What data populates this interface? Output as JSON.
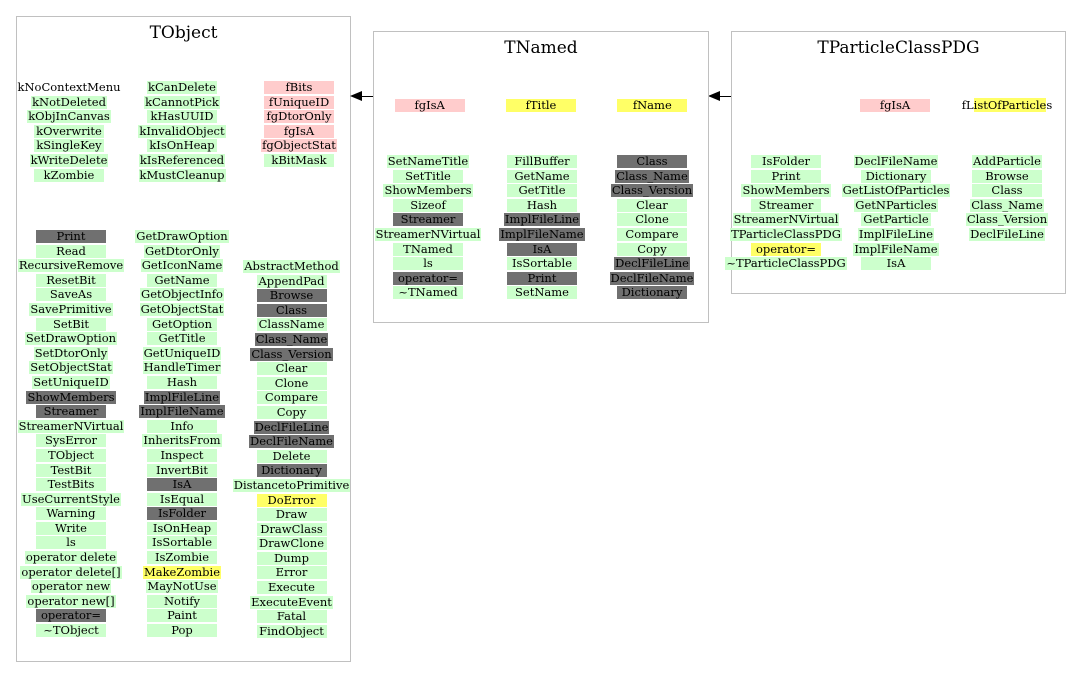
{
  "tobject": {
    "title": "TObject",
    "enums_a": [
      {
        "t": "kNoContextMenu",
        "c": "n"
      },
      {
        "t": "kNotDeleted",
        "c": "g"
      },
      {
        "t": "kObjInCanvas",
        "c": "g"
      },
      {
        "t": "kOverwrite",
        "c": "g"
      },
      {
        "t": "kSingleKey",
        "c": "g"
      },
      {
        "t": "kWriteDelete",
        "c": "g"
      },
      {
        "t": "kZombie",
        "c": "g"
      }
    ],
    "enums_b": [
      {
        "t": "kCanDelete",
        "c": "g"
      },
      {
        "t": "kCannotPick",
        "c": "g"
      },
      {
        "t": "kHasUUID",
        "c": "g"
      },
      {
        "t": "kInvalidObject",
        "c": "g"
      },
      {
        "t": "kIsOnHeap",
        "c": "g"
      },
      {
        "t": "kIsReferenced",
        "c": "g"
      },
      {
        "t": "kMustCleanup",
        "c": "g"
      }
    ],
    "members": [
      {
        "t": "fBits",
        "c": "p"
      },
      {
        "t": "fUniqueID",
        "c": "p"
      },
      {
        "t": "fgDtorOnly",
        "c": "p"
      },
      {
        "t": "fgIsA",
        "c": "p"
      },
      {
        "t": "fgObjectStat",
        "c": "p"
      },
      {
        "t": "kBitMask",
        "c": "g"
      }
    ],
    "methods_1": [
      {
        "t": "Print",
        "c": "d"
      },
      {
        "t": "Read",
        "c": "g"
      },
      {
        "t": "RecursiveRemove",
        "c": "g"
      },
      {
        "t": "ResetBit",
        "c": "g"
      },
      {
        "t": "SaveAs",
        "c": "g"
      },
      {
        "t": "SavePrimitive",
        "c": "g"
      },
      {
        "t": "SetBit",
        "c": "g"
      },
      {
        "t": "SetDrawOption",
        "c": "g"
      },
      {
        "t": "SetDtorOnly",
        "c": "g"
      },
      {
        "t": "SetObjectStat",
        "c": "g"
      },
      {
        "t": "SetUniqueID",
        "c": "g"
      },
      {
        "t": "ShowMembers",
        "c": "d"
      },
      {
        "t": "Streamer",
        "c": "d"
      },
      {
        "t": "StreamerNVirtual",
        "c": "g"
      },
      {
        "t": "SysError",
        "c": "g"
      },
      {
        "t": "TObject",
        "c": "g"
      },
      {
        "t": "TestBit",
        "c": "g"
      },
      {
        "t": "TestBits",
        "c": "g"
      },
      {
        "t": "UseCurrentStyle",
        "c": "g"
      },
      {
        "t": "Warning",
        "c": "g"
      },
      {
        "t": "Write",
        "c": "g"
      },
      {
        "t": "ls",
        "c": "g"
      },
      {
        "t": "operator delete",
        "c": "g"
      },
      {
        "t": "operator delete[]",
        "c": "g"
      },
      {
        "t": "operator new",
        "c": "g"
      },
      {
        "t": "operator new[]",
        "c": "g"
      },
      {
        "t": "operator=",
        "c": "d"
      },
      {
        "t": "~TObject",
        "c": "g"
      }
    ],
    "methods_2": [
      {
        "t": "GetDrawOption",
        "c": "g"
      },
      {
        "t": "GetDtorOnly",
        "c": "g"
      },
      {
        "t": "GetIconName",
        "c": "g"
      },
      {
        "t": "GetName",
        "c": "g"
      },
      {
        "t": "GetObjectInfo",
        "c": "g"
      },
      {
        "t": "GetObjectStat",
        "c": "g"
      },
      {
        "t": "GetOption",
        "c": "g"
      },
      {
        "t": "GetTitle",
        "c": "g"
      },
      {
        "t": "GetUniqueID",
        "c": "g"
      },
      {
        "t": "HandleTimer",
        "c": "g"
      },
      {
        "t": "Hash",
        "c": "g"
      },
      {
        "t": "ImplFileLine",
        "c": "d"
      },
      {
        "t": "ImplFileName",
        "c": "d"
      },
      {
        "t": "Info",
        "c": "g"
      },
      {
        "t": "InheritsFrom",
        "c": "g"
      },
      {
        "t": "Inspect",
        "c": "g"
      },
      {
        "t": "InvertBit",
        "c": "g"
      },
      {
        "t": "IsA",
        "c": "d"
      },
      {
        "t": "IsEqual",
        "c": "g"
      },
      {
        "t": "IsFolder",
        "c": "d"
      },
      {
        "t": "IsOnHeap",
        "c": "g"
      },
      {
        "t": "IsSortable",
        "c": "g"
      },
      {
        "t": "IsZombie",
        "c": "g"
      },
      {
        "t": "MakeZombie",
        "c": "y"
      },
      {
        "t": "MayNotUse",
        "c": "g"
      },
      {
        "t": "Notify",
        "c": "g"
      },
      {
        "t": "Paint",
        "c": "g"
      },
      {
        "t": "Pop",
        "c": "g"
      }
    ],
    "methods_3": [
      {
        "t": "AbstractMethod",
        "c": "g"
      },
      {
        "t": "AppendPad",
        "c": "g"
      },
      {
        "t": "Browse",
        "c": "d"
      },
      {
        "t": "Class",
        "c": "d"
      },
      {
        "t": "ClassName",
        "c": "g"
      },
      {
        "t": "Class_Name",
        "c": "d"
      },
      {
        "t": "Class_Version",
        "c": "d"
      },
      {
        "t": "Clear",
        "c": "g"
      },
      {
        "t": "Clone",
        "c": "g"
      },
      {
        "t": "Compare",
        "c": "g"
      },
      {
        "t": "Copy",
        "c": "g"
      },
      {
        "t": "DeclFileLine",
        "c": "d"
      },
      {
        "t": "DeclFileName",
        "c": "d"
      },
      {
        "t": "Delete",
        "c": "g"
      },
      {
        "t": "Dictionary",
        "c": "d"
      },
      {
        "t": "DistancetoPrimitive",
        "c": "g"
      },
      {
        "t": "DoError",
        "c": "y"
      },
      {
        "t": "Draw",
        "c": "g"
      },
      {
        "t": "DrawClass",
        "c": "g"
      },
      {
        "t": "DrawClone",
        "c": "g"
      },
      {
        "t": "Dump",
        "c": "g"
      },
      {
        "t": "Error",
        "c": "g"
      },
      {
        "t": "Execute",
        "c": "g"
      },
      {
        "t": "ExecuteEvent",
        "c": "g"
      },
      {
        "t": "Fatal",
        "c": "g"
      },
      {
        "t": "FindObject",
        "c": "g"
      }
    ]
  },
  "tnamed": {
    "title": "TNamed",
    "members": [
      {
        "t": "fgIsA",
        "c": "p"
      },
      {
        "t": "fTitle",
        "c": "y"
      },
      {
        "t": "fName",
        "c": "y"
      }
    ],
    "methods_1": [
      {
        "t": "SetNameTitle",
        "c": "g"
      },
      {
        "t": "SetTitle",
        "c": "g"
      },
      {
        "t": "ShowMembers",
        "c": "g"
      },
      {
        "t": "Sizeof",
        "c": "g"
      },
      {
        "t": "Streamer",
        "c": "d"
      },
      {
        "t": "StreamerNVirtual",
        "c": "g"
      },
      {
        "t": "TNamed",
        "c": "g"
      },
      {
        "t": "ls",
        "c": "g"
      },
      {
        "t": "operator=",
        "c": "d"
      },
      {
        "t": "~TNamed",
        "c": "g"
      }
    ],
    "methods_2": [
      {
        "t": "FillBuffer",
        "c": "g"
      },
      {
        "t": "GetName",
        "c": "g"
      },
      {
        "t": "GetTitle",
        "c": "g"
      },
      {
        "t": "Hash",
        "c": "g"
      },
      {
        "t": "ImplFileLine",
        "c": "d"
      },
      {
        "t": "ImplFileName",
        "c": "d"
      },
      {
        "t": "IsA",
        "c": "d"
      },
      {
        "t": "IsSortable",
        "c": "g"
      },
      {
        "t": "Print",
        "c": "d"
      },
      {
        "t": "SetName",
        "c": "g"
      }
    ],
    "methods_3": [
      {
        "t": "Class",
        "c": "d"
      },
      {
        "t": "Class_Name",
        "c": "d"
      },
      {
        "t": "Class_Version",
        "c": "d"
      },
      {
        "t": "Clear",
        "c": "g"
      },
      {
        "t": "Clone",
        "c": "g"
      },
      {
        "t": "Compare",
        "c": "g"
      },
      {
        "t": "Copy",
        "c": "g"
      },
      {
        "t": "DeclFileLine",
        "c": "d"
      },
      {
        "t": "DeclFileName",
        "c": "d"
      },
      {
        "t": "Dictionary",
        "c": "d"
      }
    ]
  },
  "tparticle": {
    "title": "TParticleClassPDG",
    "members": [
      {
        "t": "fgIsA",
        "c": "p"
      }
    ],
    "member_list_prefix": "fL",
    "member_list_highlight": "istOfParticle",
    "member_list_suffix": "s",
    "methods_1": [
      {
        "t": "IsFolder",
        "c": "g"
      },
      {
        "t": "Print",
        "c": "g"
      },
      {
        "t": "ShowMembers",
        "c": "g"
      },
      {
        "t": "Streamer",
        "c": "g"
      },
      {
        "t": "StreamerNVirtual",
        "c": "g"
      },
      {
        "t": "TParticleClassPDG",
        "c": "g"
      },
      {
        "t": "operator=",
        "c": "y"
      },
      {
        "t": "~TParticleClassPDG",
        "c": "g"
      }
    ],
    "methods_2": [
      {
        "t": "DeclFileName",
        "c": "g"
      },
      {
        "t": "Dictionary",
        "c": "g"
      },
      {
        "t": "GetListOfParticles",
        "c": "g"
      },
      {
        "t": "GetNParticles",
        "c": "g"
      },
      {
        "t": "GetParticle",
        "c": "g"
      },
      {
        "t": "ImplFileLine",
        "c": "g"
      },
      {
        "t": "ImplFileName",
        "c": "g"
      },
      {
        "t": "IsA",
        "c": "g"
      }
    ],
    "methods_3": [
      {
        "t": "AddParticle",
        "c": "g"
      },
      {
        "t": "Browse",
        "c": "g"
      },
      {
        "t": "Class",
        "c": "g"
      },
      {
        "t": "Class_Name",
        "c": "g"
      },
      {
        "t": "Class_Version",
        "c": "g"
      },
      {
        "t": "DeclFileLine",
        "c": "g"
      }
    ]
  },
  "colors": {
    "inherited": "#ccffcc",
    "overridden": "#707070",
    "protected": "#ffff66",
    "static": "#ffcccc",
    "box_border": "#c0c0c0"
  }
}
